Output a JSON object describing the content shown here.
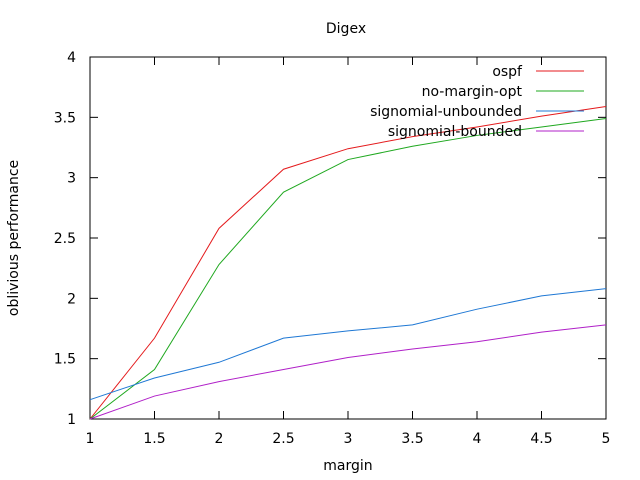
{
  "chart_data": {
    "type": "line",
    "title": "Digex",
    "xlabel": "margin",
    "ylabel": "oblivious performance",
    "xlim": [
      1,
      5
    ],
    "ylim": [
      1,
      4
    ],
    "xticks": [
      "1",
      "1.5",
      "2",
      "2.5",
      "3",
      "3.5",
      "4",
      "4.5",
      "5"
    ],
    "yticks": [
      "1",
      "1.5",
      "2",
      "2.5",
      "3",
      "3.5",
      "4"
    ],
    "grid": false,
    "legend_position": "top-right",
    "x": [
      1,
      1.5,
      2,
      2.5,
      3,
      3.5,
      4,
      4.5,
      5
    ],
    "series": [
      {
        "name": "ospf",
        "color": "#e41a1c",
        "values": [
          1.0,
          1.67,
          2.58,
          3.07,
          3.24,
          3.34,
          3.42,
          3.51,
          3.59
        ]
      },
      {
        "name": "no-margin-opt",
        "color": "#1fa81f",
        "values": [
          1.0,
          1.41,
          2.28,
          2.88,
          3.15,
          3.26,
          3.35,
          3.42,
          3.49
        ]
      },
      {
        "name": "signomial-unbounded",
        "color": "#1f78d4",
        "values": [
          1.16,
          1.34,
          1.47,
          1.67,
          1.73,
          1.78,
          1.91,
          2.02,
          2.08
        ]
      },
      {
        "name": "signomial-bounded",
        "color": "#b020c8",
        "values": [
          1.0,
          1.19,
          1.31,
          1.41,
          1.51,
          1.58,
          1.64,
          1.72,
          1.78
        ]
      }
    ]
  }
}
